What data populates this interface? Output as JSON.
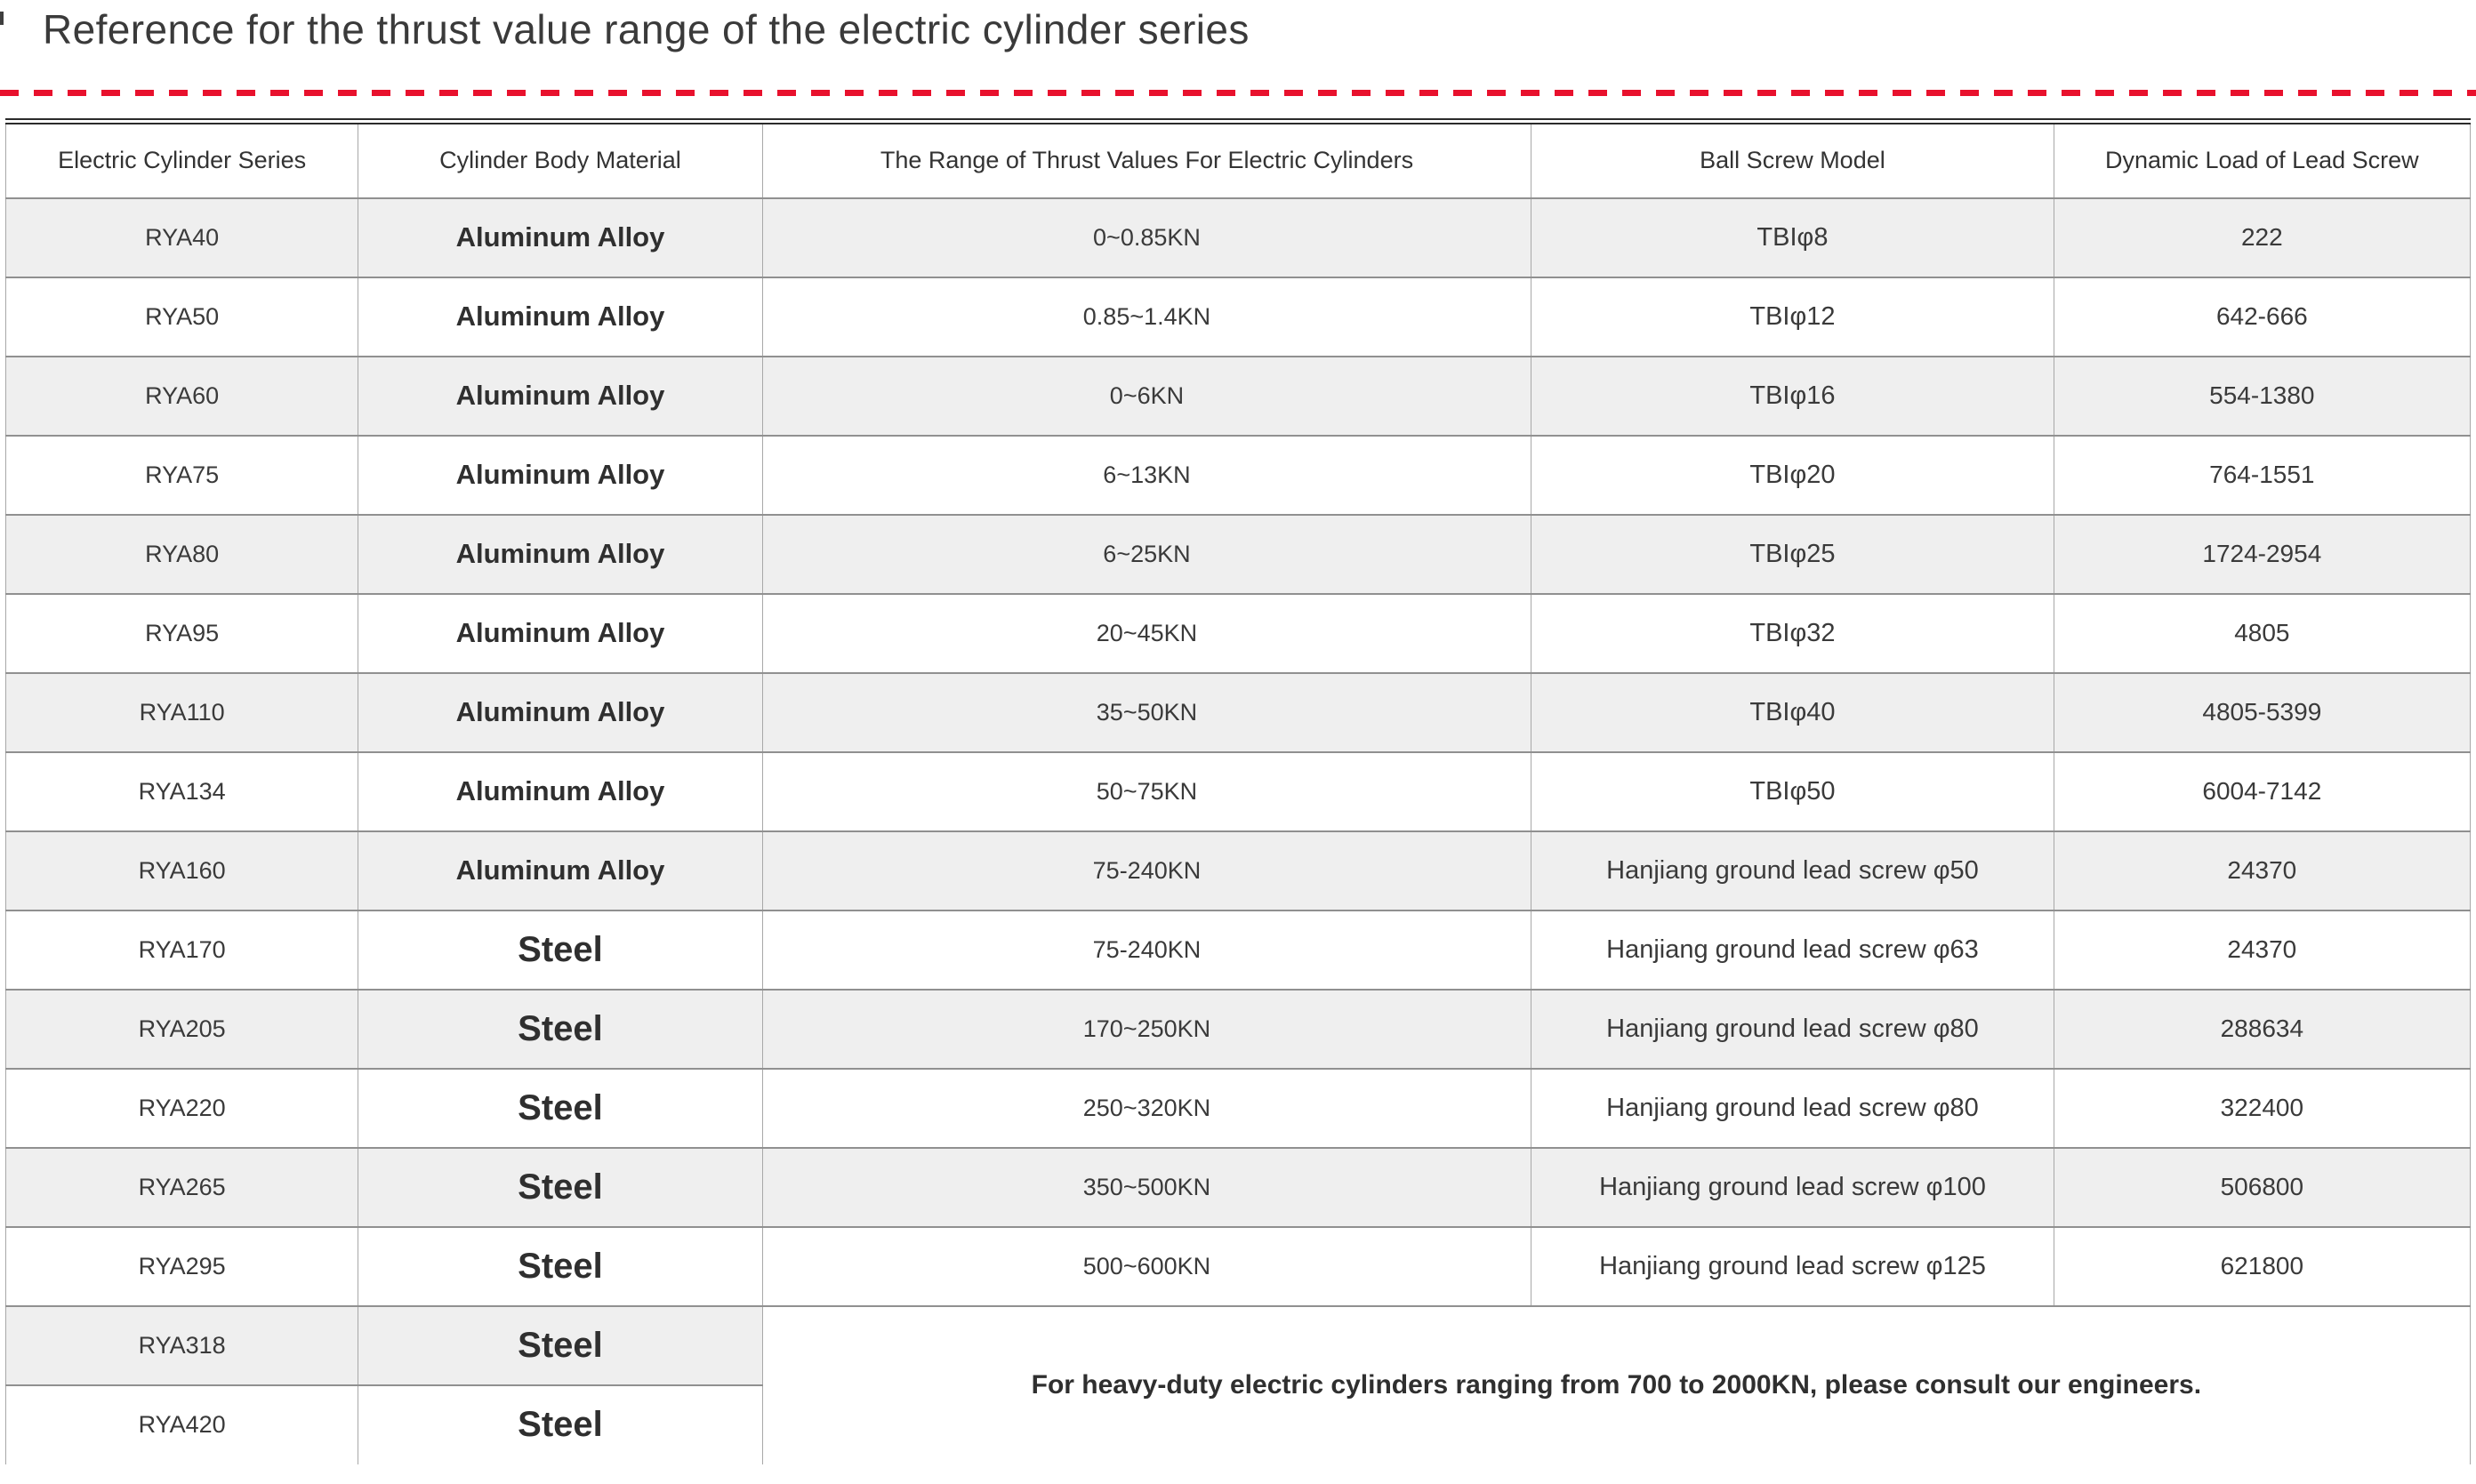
{
  "page": {
    "title": "Reference for the thrust value range of the electric cylinder series"
  },
  "colors": {
    "accent_dash_red": "#e8112d",
    "row_stripe_gray": "#efefef",
    "grid_line_gray": "#909090",
    "table_top_border": "#2b2b2b",
    "text_dark": "#333333"
  },
  "table": {
    "columns": [
      "Electric Cylinder Series",
      "Cylinder Body Material",
      "The Range of Thrust Values For Electric Cylinders",
      "Ball Screw Model",
      "Dynamic Load of Lead Screw"
    ],
    "rows": [
      {
        "series": "RYA40",
        "material": "Aluminum Alloy",
        "thrust": "0~0.85KN",
        "ball_screw": "TBIφ8",
        "dynamic_load": "222"
      },
      {
        "series": "RYA50",
        "material": "Aluminum Alloy",
        "thrust": "0.85~1.4KN",
        "ball_screw": "TBIφ12",
        "dynamic_load": "642-666"
      },
      {
        "series": "RYA60",
        "material": "Aluminum Alloy",
        "thrust": "0~6KN",
        "ball_screw": "TBIφ16",
        "dynamic_load": "554-1380"
      },
      {
        "series": "RYA75",
        "material": "Aluminum Alloy",
        "thrust": "6~13KN",
        "ball_screw": "TBIφ20",
        "dynamic_load": "764-1551"
      },
      {
        "series": "RYA80",
        "material": "Aluminum Alloy",
        "thrust": "6~25KN",
        "ball_screw": "TBIφ25",
        "dynamic_load": "1724-2954"
      },
      {
        "series": "RYA95",
        "material": "Aluminum Alloy",
        "thrust": "20~45KN",
        "ball_screw": "TBIφ32",
        "dynamic_load": "4805"
      },
      {
        "series": "RYA110",
        "material": "Aluminum Alloy",
        "thrust": "35~50KN",
        "ball_screw": "TBIφ40",
        "dynamic_load": "4805-5399"
      },
      {
        "series": "RYA134",
        "material": "Aluminum Alloy",
        "thrust": "50~75KN",
        "ball_screw": "TBIφ50",
        "dynamic_load": "6004-7142"
      },
      {
        "series": "RYA160",
        "material": "Aluminum Alloy",
        "thrust": "75-240KN",
        "ball_screw": "Hanjiang ground lead screw φ50",
        "dynamic_load": "24370"
      },
      {
        "series": "RYA170",
        "material": "Steel",
        "thrust": "75-240KN",
        "ball_screw": "Hanjiang ground lead screw φ63",
        "dynamic_load": "24370"
      },
      {
        "series": "RYA205",
        "material": "Steel",
        "thrust": "170~250KN",
        "ball_screw": "Hanjiang ground lead screw φ80",
        "dynamic_load": "288634"
      },
      {
        "series": "RYA220",
        "material": "Steel",
        "thrust": "250~320KN",
        "ball_screw": "Hanjiang ground lead screw φ80",
        "dynamic_load": "322400"
      },
      {
        "series": "RYA265",
        "material": "Steel",
        "thrust": "350~500KN",
        "ball_screw": "Hanjiang ground lead screw φ100",
        "dynamic_load": "506800"
      },
      {
        "series": "RYA295",
        "material": "Steel",
        "thrust": "500~600KN",
        "ball_screw": "Hanjiang ground lead screw φ125",
        "dynamic_load": "621800"
      },
      {
        "series": "RYA318",
        "material": "Steel"
      },
      {
        "series": "RYA420",
        "material": "Steel"
      }
    ],
    "merged_note": "For heavy-duty electric cylinders ranging from 700 to 2000KN, please consult our engineers."
  }
}
